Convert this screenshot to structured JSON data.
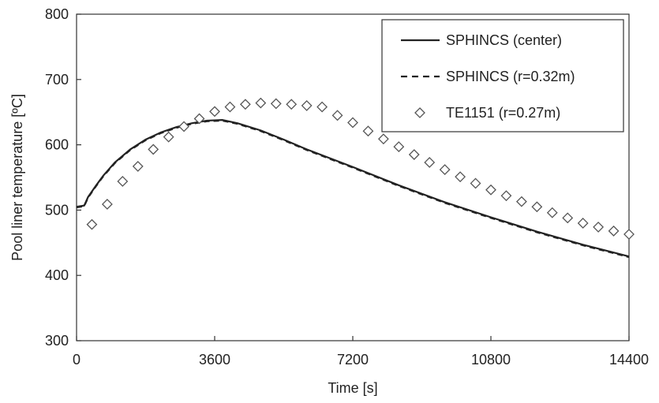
{
  "chart_data": {
    "type": "line",
    "title": "",
    "xlabel": "Time [s]",
    "ylabel": "Pool liner temperature [ºC]",
    "xlim": [
      0,
      14400
    ],
    "ylim": [
      300,
      800
    ],
    "xticks": [
      0,
      3600,
      7200,
      10800,
      14400
    ],
    "yticks": [
      300,
      400,
      500,
      600,
      700,
      800
    ],
    "grid": false,
    "legend_position": "top-right",
    "series": [
      {
        "name": "SPHINCS (center)",
        "style": "solid",
        "color": "#222222",
        "x": [
          0,
          200,
          300,
          500,
          700,
          1000,
          1400,
          1800,
          2200,
          2600,
          3000,
          3400,
          3800,
          4200,
          4800,
          5400,
          6000,
          7200,
          8400,
          9600,
          10800,
          12000,
          13200,
          14400
        ],
        "y": [
          505,
          507,
          520,
          537,
          553,
          573,
          593,
          608,
          619,
          627,
          633,
          637,
          638,
          633,
          622,
          608,
          593,
          566,
          538,
          512,
          489,
          467,
          447,
          429
        ]
      },
      {
        "name": "SPHINCS (r=0.32m)",
        "style": "dashed",
        "color": "#222222",
        "x": [
          0,
          200,
          300,
          500,
          700,
          1000,
          1400,
          1800,
          2200,
          2600,
          3000,
          3400,
          3800,
          4200,
          4800,
          5400,
          6000,
          7200,
          8400,
          9600,
          10800,
          12000,
          13200,
          14400
        ],
        "y": [
          504,
          506,
          519,
          536,
          552,
          572,
          592,
          607,
          618,
          626,
          632,
          636,
          637,
          632,
          621,
          607,
          592,
          565,
          537,
          511,
          488,
          466,
          446,
          428
        ]
      },
      {
        "name": "TE1151 (r=0.27m)",
        "style": "diamond-markers",
        "color": "#555555",
        "x": [
          400,
          800,
          1200,
          1600,
          2000,
          2400,
          2800,
          3200,
          3600,
          4000,
          4400,
          4800,
          5200,
          5600,
          6000,
          6400,
          6800,
          7200,
          7600,
          8000,
          8400,
          8800,
          9200,
          9600,
          10000,
          10400,
          10800,
          11200,
          11600,
          12000,
          12400,
          12800,
          13200,
          13600,
          14000,
          14400
        ],
        "y": [
          478,
          509,
          544,
          567,
          593,
          612,
          628,
          640,
          651,
          658,
          662,
          664,
          663,
          662,
          660,
          658,
          645,
          634,
          621,
          609,
          597,
          585,
          573,
          562,
          551,
          541,
          531,
          522,
          513,
          505,
          496,
          488,
          480,
          474,
          468,
          463
        ]
      }
    ]
  }
}
